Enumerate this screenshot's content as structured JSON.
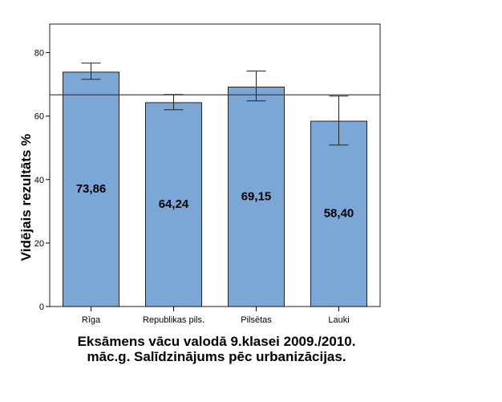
{
  "chart_data": {
    "type": "bar",
    "title_lines": [
      "Eksāmens vācu valodā 9.klasei 2009./2010.",
      "māc.g. Salīdzinājums pēc urbanizācijas."
    ],
    "xlabel": "",
    "ylabel": "Vidējais rezultāts %",
    "ylim": [
      0,
      89
    ],
    "yticks": [
      0,
      20,
      40,
      60,
      80
    ],
    "ytick_labels": [
      "0",
      "20",
      "40",
      "60",
      "80"
    ],
    "categories": [
      "Rīga",
      "Republikas pils.",
      "Pilsētas",
      "Lauki"
    ],
    "values": [
      73.86,
      64.24,
      69.15,
      58.4
    ],
    "data_labels": [
      "73,86",
      "64,24",
      "69,15",
      "58,40"
    ],
    "error_low": [
      71.6,
      62.0,
      64.8,
      50.9
    ],
    "error_high": [
      76.7,
      66.8,
      74.2,
      66.3
    ],
    "reference_line": 66.7,
    "bar_color": "#7ba7d7",
    "grid": false
  }
}
